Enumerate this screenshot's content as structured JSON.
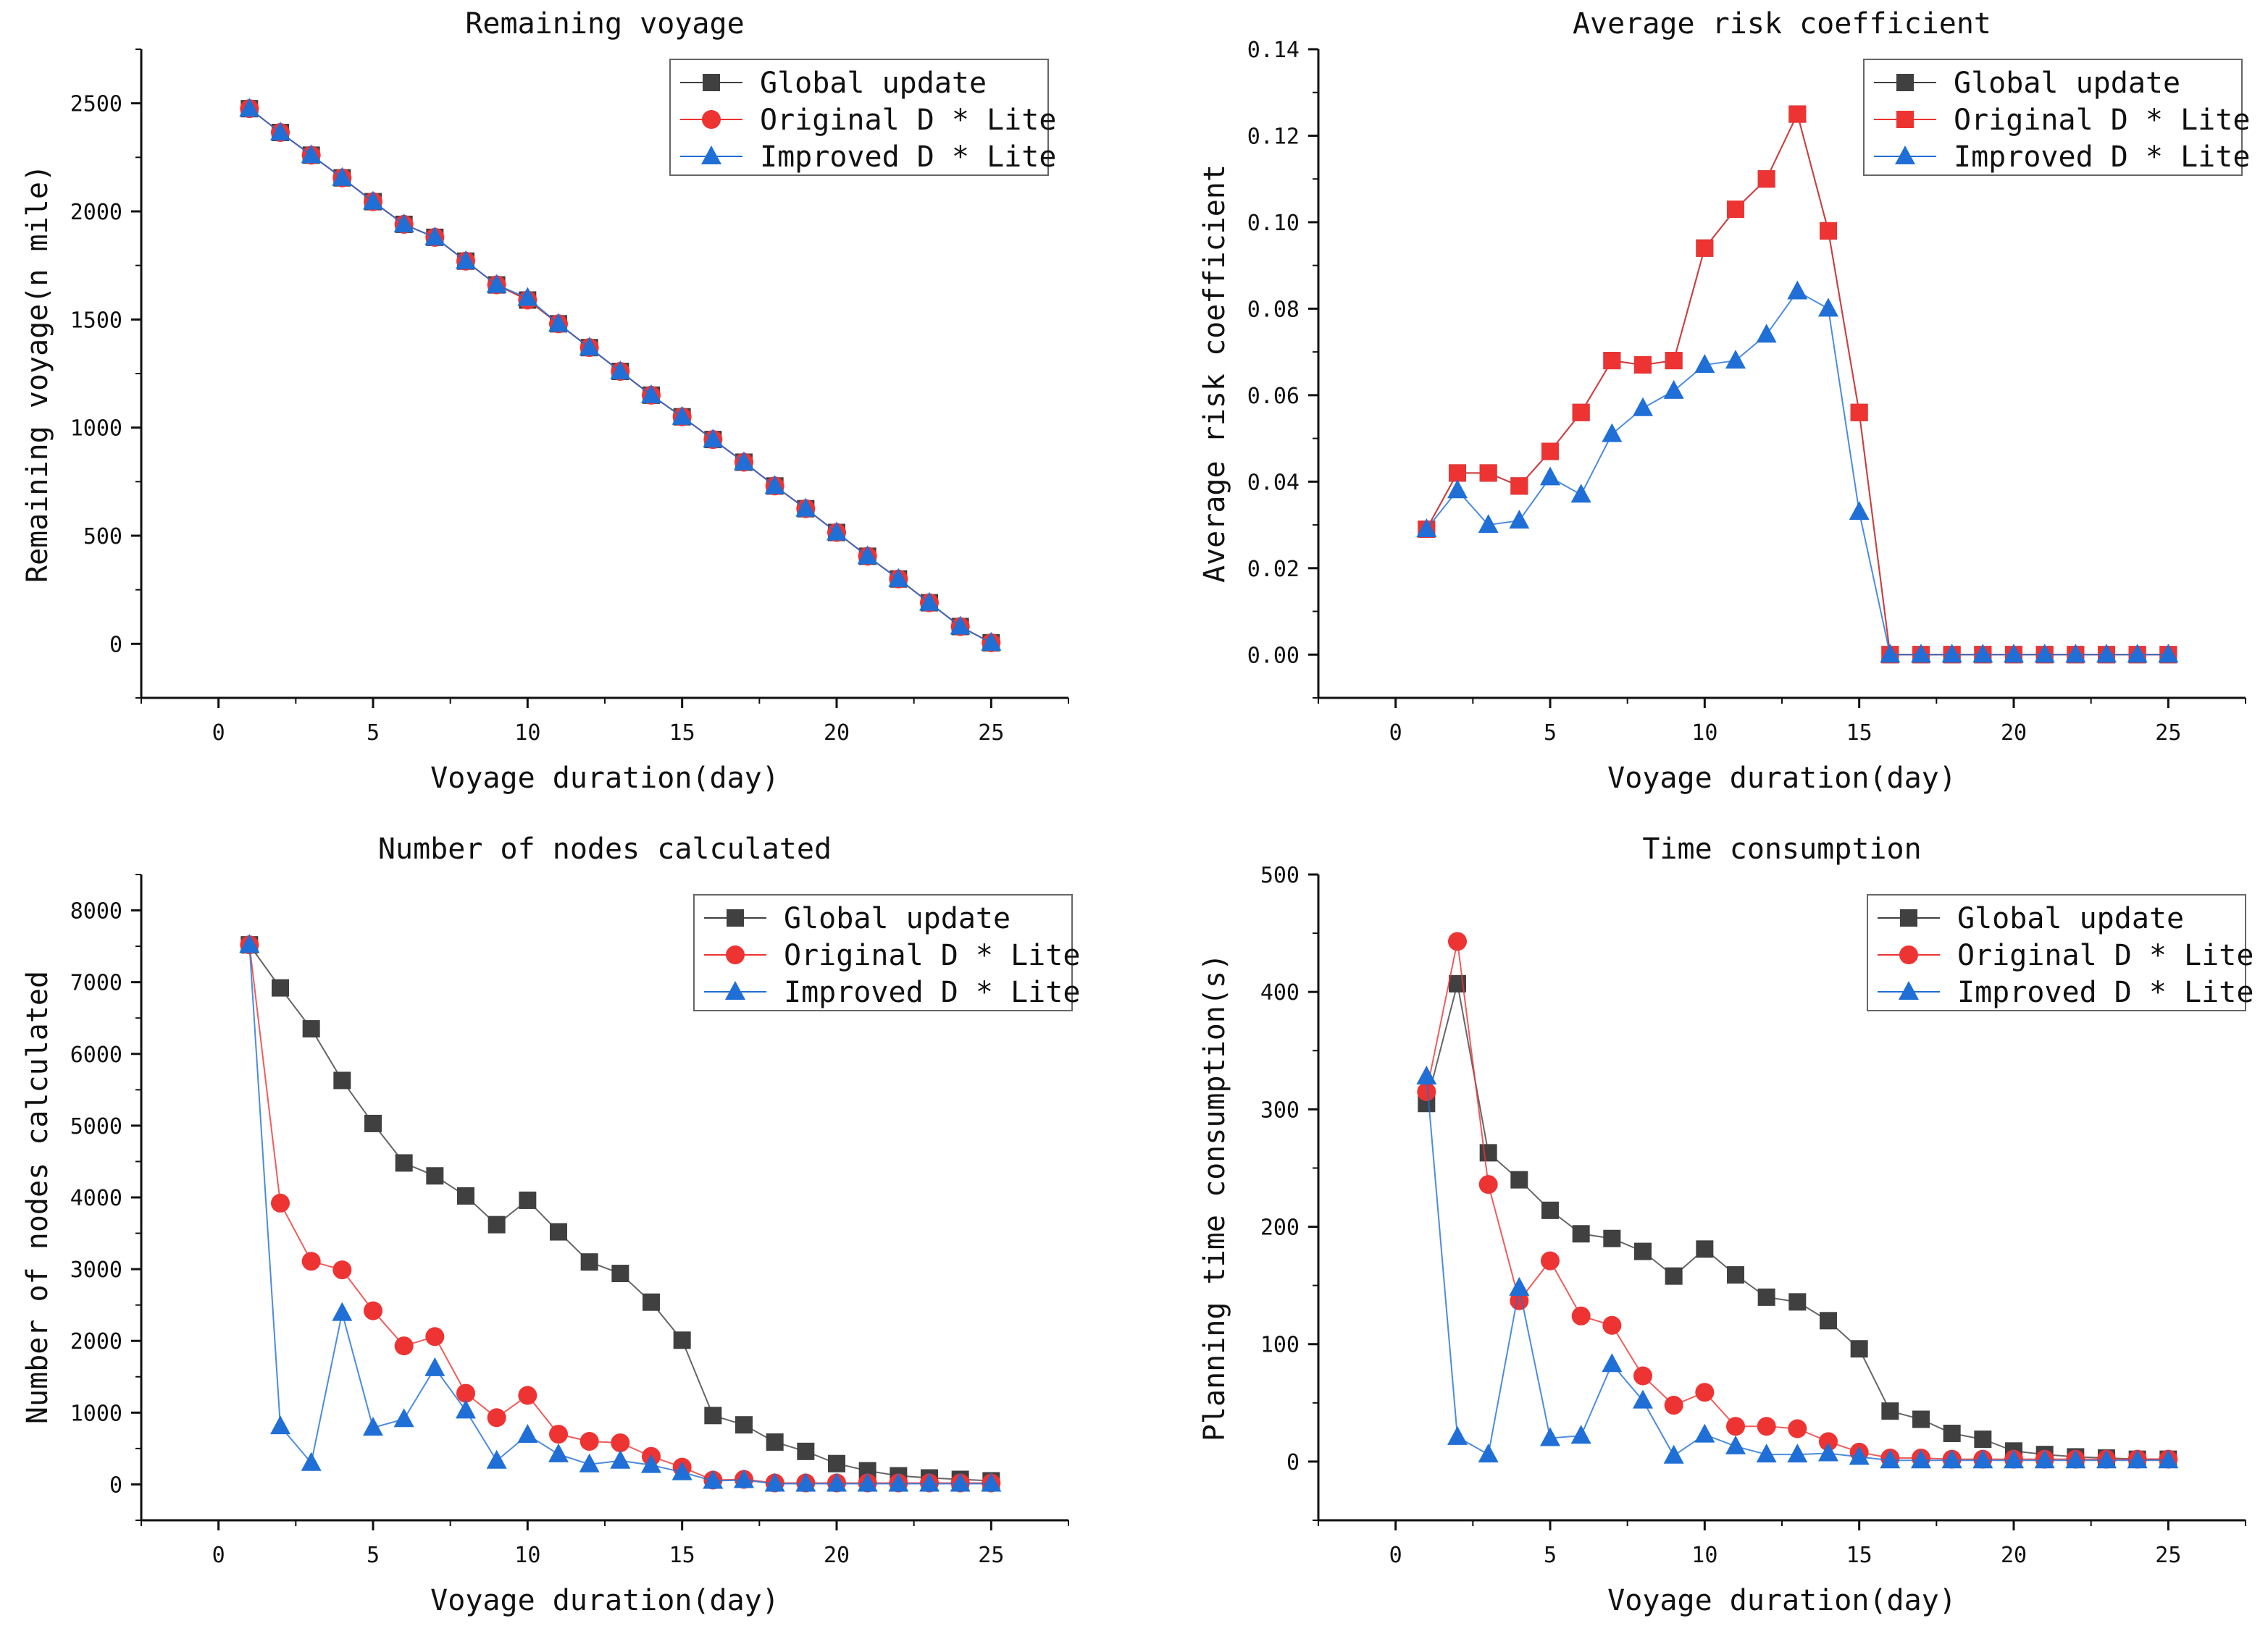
{
  "figure": {
    "legend_labels": [
      "Global update",
      "Original D * Lite",
      "Improved D * Lite"
    ]
  },
  "chart_data": [
    {
      "type": "line",
      "title": "Remaining voyage",
      "xlabel": "Voyage duration(day)",
      "ylabel": "Remaining voyage(n mile)",
      "xlim": [
        -2.5,
        27.5
      ],
      "ylim": [
        -250,
        2750
      ],
      "xticks": [
        0,
        5,
        10,
        15,
        20,
        25
      ],
      "yticks": [
        0,
        500,
        1000,
        1500,
        2000,
        2500
      ],
      "ytick_labels": [
        "0",
        "500",
        "1000",
        "1500",
        "2000",
        "2500"
      ],
      "legend_position": "top-right",
      "x": [
        1,
        2,
        3,
        4,
        5,
        6,
        7,
        8,
        9,
        10,
        11,
        12,
        13,
        14,
        15,
        16,
        17,
        18,
        19,
        20,
        21,
        22,
        23,
        24,
        25
      ],
      "series": [
        {
          "name": "Global update",
          "marker": "square",
          "color": "#404040",
          "values": [
            2475,
            2365,
            2260,
            2155,
            2045,
            1940,
            1880,
            1770,
            1660,
            1590,
            1480,
            1370,
            1260,
            1150,
            1050,
            945,
            840,
            730,
            625,
            515,
            405,
            300,
            190,
            80,
            5
          ]
        },
        {
          "name": "Original D * Lite",
          "marker": "circle",
          "color": "#ee3333",
          "values": [
            2475,
            2365,
            2260,
            2155,
            2045,
            1940,
            1880,
            1770,
            1660,
            1590,
            1480,
            1370,
            1260,
            1150,
            1050,
            945,
            840,
            730,
            625,
            515,
            405,
            300,
            190,
            80,
            5
          ]
        },
        {
          "name": "Improved D * Lite",
          "marker": "triangle",
          "color": "#1f6fd6",
          "values": [
            2475,
            2365,
            2260,
            2155,
            2045,
            1940,
            1880,
            1770,
            1660,
            1600,
            1480,
            1370,
            1260,
            1150,
            1050,
            945,
            840,
            730,
            625,
            515,
            405,
            300,
            190,
            80,
            5
          ]
        }
      ]
    },
    {
      "type": "line",
      "title": "Average risk coefficient",
      "xlabel": "Voyage duration(day)",
      "ylabel": "Average risk coefficient",
      "xlim": [
        -2.5,
        27.5
      ],
      "ylim": [
        -0.01,
        0.14
      ],
      "xticks": [
        0,
        5,
        10,
        15,
        20,
        25
      ],
      "yticks": [
        0,
        0.02,
        0.04,
        0.06,
        0.08,
        0.1,
        0.12,
        0.14
      ],
      "ytick_labels": [
        "0.00",
        "0.02",
        "0.04",
        "0.06",
        "0.08",
        "0.10",
        "0.12",
        "0.14"
      ],
      "legend_position": "top-right",
      "x": [
        1,
        2,
        3,
        4,
        5,
        6,
        7,
        8,
        9,
        10,
        11,
        12,
        13,
        14,
        15,
        16,
        17,
        18,
        19,
        20,
        21,
        22,
        23,
        24,
        25
      ],
      "series": [
        {
          "name": "Global update",
          "marker": "square",
          "color": "#404040",
          "values": [
            0.029,
            0.042,
            0.042,
            0.039,
            0.047,
            0.056,
            0.068,
            0.067,
            0.068,
            0.094,
            0.103,
            0.11,
            0.125,
            0.098,
            0.056,
            0,
            0,
            0,
            0,
            0,
            0,
            0,
            0,
            0,
            0
          ]
        },
        {
          "name": "Original D * Lite",
          "marker": "square",
          "color": "#ee3333",
          "values": [
            0.029,
            0.042,
            0.042,
            0.039,
            0.047,
            0.056,
            0.068,
            0.067,
            0.068,
            0.094,
            0.103,
            0.11,
            0.125,
            0.098,
            0.056,
            0,
            0,
            0,
            0,
            0,
            0,
            0,
            0,
            0,
            0
          ]
        },
        {
          "name": "Improved D * Lite",
          "marker": "triangle",
          "color": "#1f6fd6",
          "values": [
            0.029,
            0.038,
            0.03,
            0.031,
            0.041,
            0.037,
            0.051,
            0.057,
            0.061,
            0.067,
            0.068,
            0.074,
            0.084,
            0.08,
            0.033,
            0,
            0,
            0,
            0,
            0,
            0,
            0,
            0,
            0,
            0
          ]
        }
      ]
    },
    {
      "type": "line",
      "title": "Number of nodes calculated",
      "xlabel": "Voyage duration(day)",
      "ylabel": "Number of nodes calculated",
      "xlim": [
        -2.5,
        27.5
      ],
      "ylim": [
        -500,
        8500
      ],
      "xticks": [
        0,
        5,
        10,
        15,
        20,
        25
      ],
      "yticks": [
        0,
        1000,
        2000,
        3000,
        4000,
        5000,
        6000,
        7000,
        8000
      ],
      "ytick_labels": [
        "0",
        "1000",
        "2000",
        "3000",
        "4000",
        "5000",
        "6000",
        "7000",
        "8000"
      ],
      "legend_position": "top-right",
      "x": [
        1,
        2,
        3,
        4,
        5,
        6,
        7,
        8,
        9,
        10,
        11,
        12,
        13,
        14,
        15,
        16,
        17,
        18,
        19,
        20,
        21,
        22,
        23,
        24,
        25
      ],
      "series": [
        {
          "name": "Global update",
          "marker": "square",
          "color": "#404040",
          "values": [
            7520,
            6920,
            6350,
            5630,
            5030,
            4480,
            4300,
            4020,
            3620,
            3960,
            3520,
            3100,
            2940,
            2540,
            2010,
            960,
            830,
            590,
            460,
            290,
            190,
            120,
            90,
            70,
            50
          ]
        },
        {
          "name": "Original D * Lite",
          "marker": "circle",
          "color": "#ee3333",
          "values": [
            7520,
            3920,
            3110,
            2990,
            2420,
            1930,
            2060,
            1270,
            930,
            1240,
            700,
            600,
            580,
            390,
            240,
            60,
            70,
            20,
            20,
            20,
            20,
            20,
            20,
            20,
            20
          ]
        },
        {
          "name": "Improved D * Lite",
          "marker": "triangle",
          "color": "#1f6fd6",
          "values": [
            7520,
            810,
            300,
            2390,
            790,
            910,
            1620,
            1030,
            330,
            690,
            420,
            280,
            330,
            270,
            170,
            50,
            60,
            10,
            10,
            10,
            10,
            10,
            10,
            10,
            10
          ]
        }
      ]
    },
    {
      "type": "line",
      "title": "Time consumption",
      "xlabel": "Voyage duration(day)",
      "ylabel": "Planning time consumption(s)",
      "xlim": [
        -2.5,
        27.5
      ],
      "ylim": [
        -50,
        500
      ],
      "xticks": [
        0,
        5,
        10,
        15,
        20,
        25
      ],
      "yticks": [
        0,
        100,
        200,
        300,
        400,
        500
      ],
      "ytick_labels": [
        "0",
        "100",
        "200",
        "300",
        "400",
        "500"
      ],
      "legend_position": "top-right",
      "x": [
        1,
        2,
        3,
        4,
        5,
        6,
        7,
        8,
        9,
        10,
        11,
        12,
        13,
        14,
        15,
        16,
        17,
        18,
        19,
        20,
        21,
        22,
        23,
        24,
        25
      ],
      "series": [
        {
          "name": "Global update",
          "marker": "square",
          "color": "#404040",
          "values": [
            305,
            407,
            263,
            240,
            214,
            194,
            190,
            179,
            158,
            181,
            159,
            140,
            136,
            120,
            96,
            43,
            36,
            24,
            19,
            9,
            6,
            4,
            3,
            2,
            2
          ]
        },
        {
          "name": "Original D * Lite",
          "marker": "circle",
          "color": "#ee3333",
          "values": [
            315,
            443,
            236,
            137,
            171,
            124,
            116,
            73,
            48,
            59,
            30,
            30,
            28,
            17,
            8,
            3,
            3,
            2,
            2,
            2,
            2,
            2,
            2,
            2,
            2
          ]
        },
        {
          "name": "Improved D * Lite",
          "marker": "triangle",
          "color": "#1f6fd6",
          "values": [
            328,
            21,
            6,
            148,
            20,
            22,
            83,
            52,
            5,
            23,
            13,
            6,
            6,
            7,
            4,
            1,
            1,
            1,
            1,
            1,
            1,
            1,
            1,
            1,
            1
          ]
        }
      ]
    }
  ]
}
